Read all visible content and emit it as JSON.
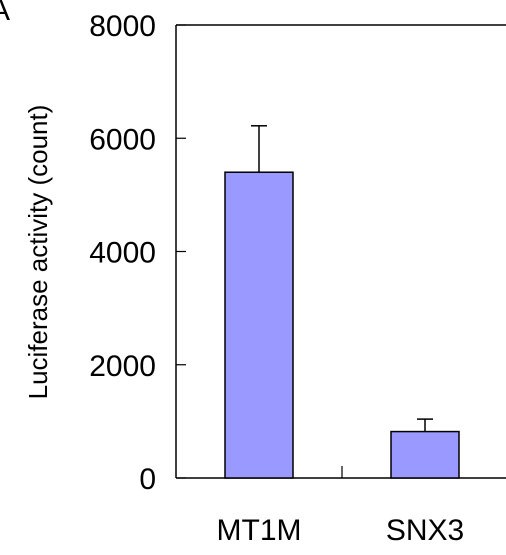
{
  "panel_label": "A",
  "chart_data": {
    "type": "bar",
    "categories": [
      "MT1M",
      "SNX3"
    ],
    "values": [
      5400,
      820
    ],
    "error": [
      820,
      220
    ],
    "ylabel": "Luciferase activity (count)",
    "xlabel": "",
    "ylim": [
      0,
      8000
    ],
    "yticks": [
      0,
      2000,
      4000,
      6000,
      8000
    ],
    "yticklabels": [
      "0",
      "2000",
      "4000",
      "6000",
      "8000"
    ],
    "grid": false,
    "legend": "none",
    "bar_color": "#9999ff",
    "edge_color": "#000000"
  }
}
